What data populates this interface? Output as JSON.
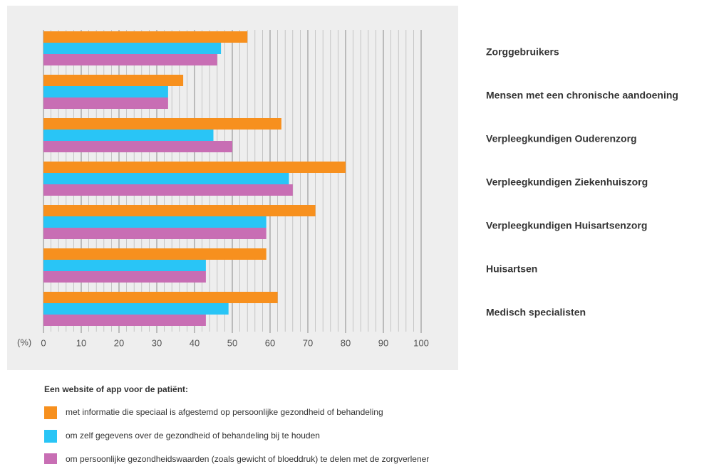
{
  "chart_data": {
    "type": "bar",
    "orientation": "horizontal",
    "x_label": "(%)",
    "legend_title": "Een website of app voor de patiënt:",
    "categories": [
      "Zorggebruikers",
      "Mensen met een chronische aandoening",
      "Verpleegkundigen Ouderenzorg",
      "Verpleegkundigen Ziekenhuiszorg",
      "Verpleegkundigen Huisartsenzorg",
      "Huisartsen",
      "Medisch specialisten"
    ],
    "series": [
      {
        "name": "met informatie die speciaal is afgestemd op persoonlijke gezondheid of behandeling",
        "color": "#f7901e",
        "values": [
          54,
          37,
          63,
          80,
          72,
          59,
          62
        ]
      },
      {
        "name": "om zelf gegevens over de gezondheid of behandeling bij te houden",
        "color": "#29c5f6",
        "values": [
          47,
          33,
          45,
          65,
          59,
          43,
          49
        ]
      },
      {
        "name": "om persoonlijke gezondheidswaarden (zoals gewicht of bloeddruk) te delen met de zorgverlener",
        "color": "#c86eb4",
        "values": [
          46,
          33,
          50,
          66,
          59,
          43,
          43
        ]
      }
    ],
    "xlim": [
      0,
      100
    ],
    "xticks": [
      0,
      10,
      20,
      30,
      40,
      50,
      60,
      70,
      80,
      90,
      100
    ],
    "grid": true
  }
}
